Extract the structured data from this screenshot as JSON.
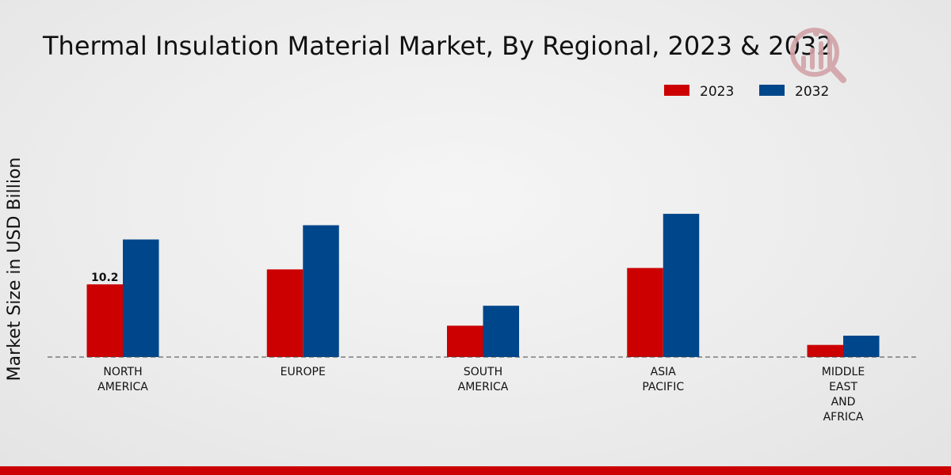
{
  "colors": {
    "series_2023": "#cc0000",
    "series_2032": "#00468b",
    "bottom_bar": "#cc0000",
    "baseline": "#444444",
    "logo": "#d2a3a8"
  },
  "logo": {
    "icon": "market-research-logo-icon"
  },
  "chart_data": {
    "type": "bar",
    "title": "Thermal Insulation Material Market, By Regional, 2023 & 2032",
    "xlabel": "",
    "ylabel": "Market Size in USD Billion",
    "ylim": [
      0,
      40
    ],
    "grid": false,
    "legend_position": "top-right",
    "categories": [
      [
        "NORTH",
        "AMERICA"
      ],
      [
        "EUROPE"
      ],
      [
        "SOUTH",
        "AMERICA"
      ],
      [
        "ASIA",
        "PACIFIC"
      ],
      [
        "MIDDLE",
        "EAST",
        "AND",
        "AFRICA"
      ]
    ],
    "series": [
      {
        "name": "2023",
        "values": [
          10.2,
          12.3,
          4.4,
          12.5,
          1.7
        ]
      },
      {
        "name": "2032",
        "values": [
          16.5,
          18.5,
          7.2,
          20.1,
          3.0
        ]
      }
    ],
    "data_labels": [
      {
        "series": 0,
        "index": 0,
        "text": "10.2"
      }
    ]
  }
}
